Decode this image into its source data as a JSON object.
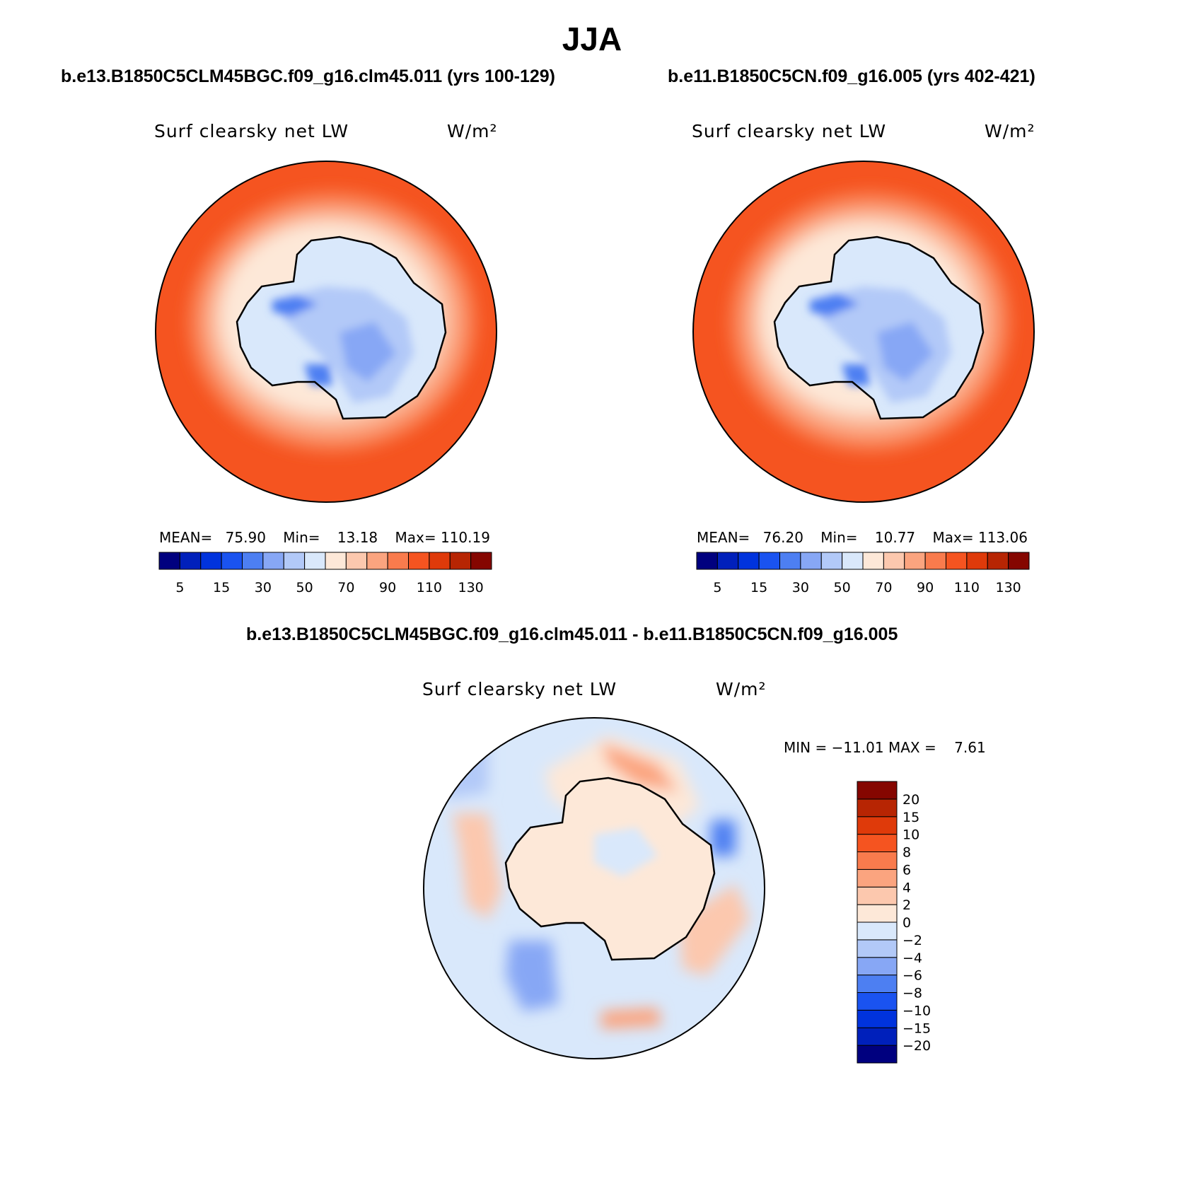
{
  "figure": {
    "title": "JJA"
  },
  "panels": [
    {
      "case_title": "b.e13.B1850C5CLM45BGC.f09_g16.clm45.011 (yrs 100-129)",
      "variable": "Surf clearsky net LW",
      "units": "W/m²",
      "stats": {
        "mean_label": "MEAN=",
        "mean": "75.90",
        "min_label": "Min=",
        "min": "13.18",
        "max_label": "Max=",
        "max": "110.19"
      }
    },
    {
      "case_title": "b.e11.B1850C5CN.f09_g16.005 (yrs 402-421)",
      "variable": "Surf clearsky net LW",
      "units": "W/m²",
      "stats": {
        "mean_label": "MEAN=",
        "mean": "76.20",
        "min_label": "Min=",
        "min": "10.77",
        "max_label": "Max=",
        "max": "113.06"
      }
    },
    {
      "case_title": "b.e13.B1850C5CLM45BGC.f09_g16.clm45.011 - b.e11.B1850C5CN.f09_g16.005",
      "variable": "Surf clearsky net LW",
      "units": "W/m²",
      "stats": {
        "text": "MIN = −11.01 MAX =    7.61"
      }
    }
  ],
  "colorbars": {
    "absolute": {
      "colors": [
        "#00007f",
        "#0020bb",
        "#0033dd",
        "#1a53f0",
        "#4d7ff2",
        "#87a7f5",
        "#b2c9f8",
        "#d9e8fb",
        "#fde8d8",
        "#fcc8ae",
        "#fba47f",
        "#f97b4d",
        "#f55420",
        "#df3a0a",
        "#b72503",
        "#850600"
      ],
      "tick_labels": [
        "5",
        "15",
        "30",
        "50",
        "70",
        "90",
        "110",
        "130"
      ]
    },
    "difference": {
      "colors": [
        "#00007f",
        "#0020bb",
        "#0033dd",
        "#1a53f0",
        "#4d7ff2",
        "#87a7f5",
        "#b2c9f8",
        "#d9e8fb",
        "#fde8d8",
        "#fcc8ae",
        "#fba47f",
        "#f97b4d",
        "#f55420",
        "#df3a0a",
        "#b72503",
        "#850600"
      ],
      "tick_labels": [
        "−20",
        "−15",
        "−10",
        "−8",
        "−6",
        "−4",
        "−2",
        "0",
        "2",
        "4",
        "6",
        "8",
        "10",
        "15",
        "20"
      ]
    }
  }
}
